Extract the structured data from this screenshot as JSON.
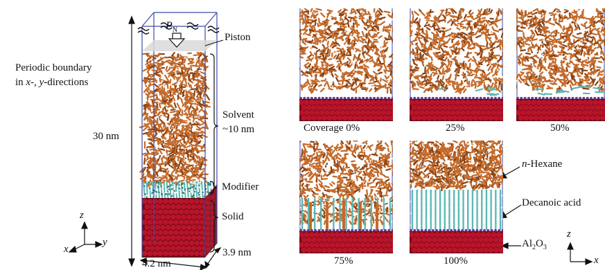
{
  "colors": {
    "solvent": "#c46a2a",
    "solvent_dark": "#8a4417",
    "solvent_white": "#f4f4f4",
    "modifier": "#5cb7b2",
    "modifier_dark": "#2d7f7c",
    "solid": "#b8142a",
    "solid_dark": "#6e0a18",
    "frame": "#3b4aa8",
    "piston": "#d9d9d9",
    "purple": "#6a3d8c"
  },
  "left": {
    "periodic_line1": "Periodic boundary",
    "periodic_line2_pre": "in ",
    "periodic_x": "x",
    "periodic_mid": "-, ",
    "periodic_y": "y",
    "periodic_post": "-directions",
    "height": "30 nm",
    "pressure_p": "P",
    "pressure_sub": "N",
    "piston": "Piston",
    "solvent_line1": "Solvent",
    "solvent_line2": "~10 nm",
    "modifier": "Modifier",
    "solid": "Solid",
    "width": "4.2 nm",
    "depth": "3.9 nm",
    "axis_x": "x",
    "axis_y": "y",
    "axis_z": "z"
  },
  "panels": [
    {
      "coverage": 0.0,
      "label": "Coverage 0%"
    },
    {
      "coverage": 0.25,
      "label": "25%"
    },
    {
      "coverage": 0.5,
      "label": "50%"
    },
    {
      "coverage": 0.75,
      "label": "75%"
    },
    {
      "coverage": 1.0,
      "label": "100%"
    }
  ],
  "legend": {
    "hexane_n": "n",
    "hexane_rest": "-Hexane",
    "decanoic": "Decanoic acid",
    "alumina_pre": "Al",
    "alumina_sub1": "2",
    "alumina_o": "O",
    "alumina_sub2": "3"
  },
  "right_axes": {
    "z": "z",
    "x": "x"
  }
}
